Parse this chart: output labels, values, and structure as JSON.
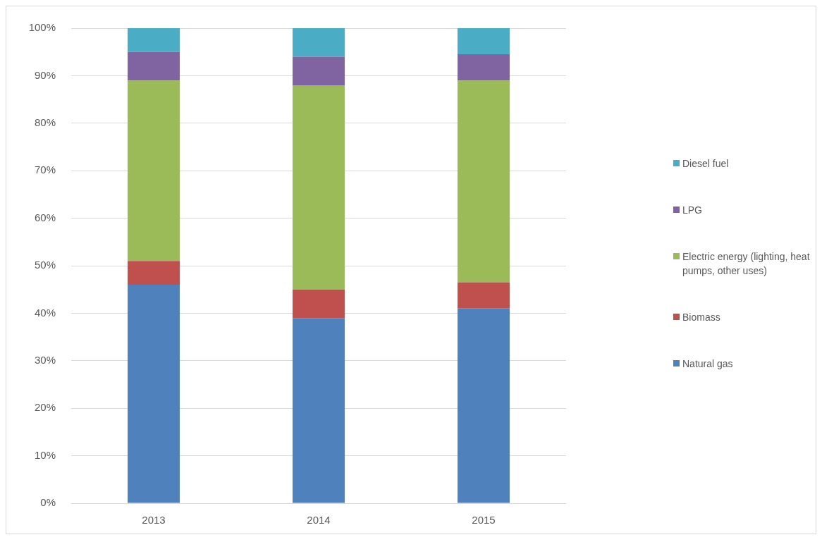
{
  "chart_data": {
    "type": "bar",
    "stacked": true,
    "categories": [
      "2013",
      "2014",
      "2015"
    ],
    "series": [
      {
        "name": "Natural gas",
        "color": "#4f81bd",
        "values": [
          46,
          39,
          41
        ]
      },
      {
        "name": "Biomass",
        "color": "#c0504d",
        "values": [
          5,
          6,
          5.5
        ]
      },
      {
        "name": "Electric energy (lighting, heat pumps, other uses)",
        "color": "#9bbb59",
        "values": [
          38,
          43,
          42.5
        ]
      },
      {
        "name": "LPG",
        "color": "#8064a2",
        "values": [
          6,
          6,
          5.5
        ]
      },
      {
        "name": "Diesel fuel",
        "color": "#4bacc6",
        "values": [
          5,
          6,
          5.5
        ]
      }
    ],
    "ylim": [
      0,
      100
    ],
    "yticks": [
      {
        "value": 0,
        "label": "0%"
      },
      {
        "value": 10,
        "label": "10%"
      },
      {
        "value": 20,
        "label": "20%"
      },
      {
        "value": 30,
        "label": "30%"
      },
      {
        "value": 40,
        "label": "40%"
      },
      {
        "value": 50,
        "label": "50%"
      },
      {
        "value": 60,
        "label": "60%"
      },
      {
        "value": 70,
        "label": "70%"
      },
      {
        "value": 80,
        "label": "80%"
      },
      {
        "value": 90,
        "label": "90%"
      },
      {
        "value": 100,
        "label": "100%"
      }
    ],
    "grid": "y",
    "legend": "right"
  }
}
